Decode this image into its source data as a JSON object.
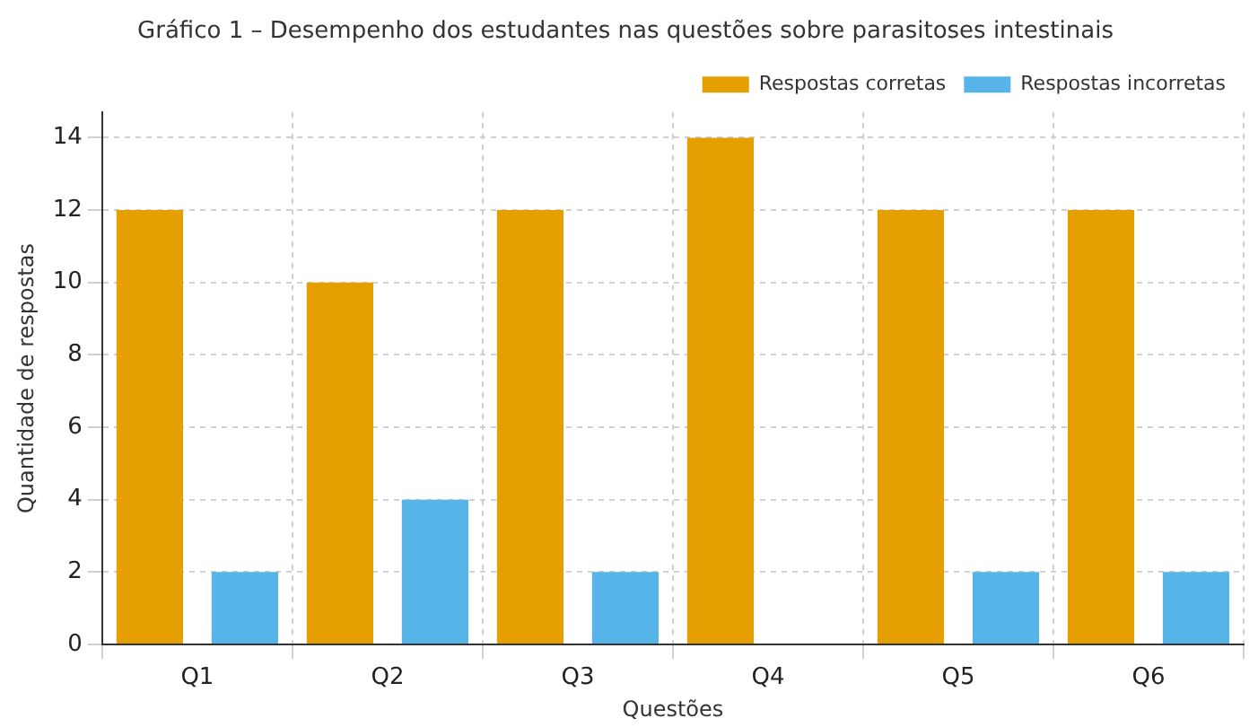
{
  "chart_data": {
    "type": "bar",
    "title": "Gráfico 1 – Desempenho dos estudantes nas questões sobre parasitoses intestinais",
    "xlabel": "Questões",
    "ylabel": "Quantidade de respostas",
    "categories": [
      "Q1",
      "Q2",
      "Q3",
      "Q4",
      "Q5",
      "Q6"
    ],
    "series": [
      {
        "name": "Respostas corretas",
        "color": "#e69f00",
        "values": [
          12,
          10,
          12,
          14,
          12,
          12
        ]
      },
      {
        "name": "Respostas incorretas",
        "color": "#56b4e9",
        "values": [
          2,
          4,
          2,
          0,
          2,
          2
        ]
      }
    ],
    "ylim": [
      0,
      14.7
    ],
    "yticks": [
      0,
      2,
      4,
      6,
      8,
      10,
      12,
      14
    ],
    "grid": true,
    "legend": "top right"
  }
}
